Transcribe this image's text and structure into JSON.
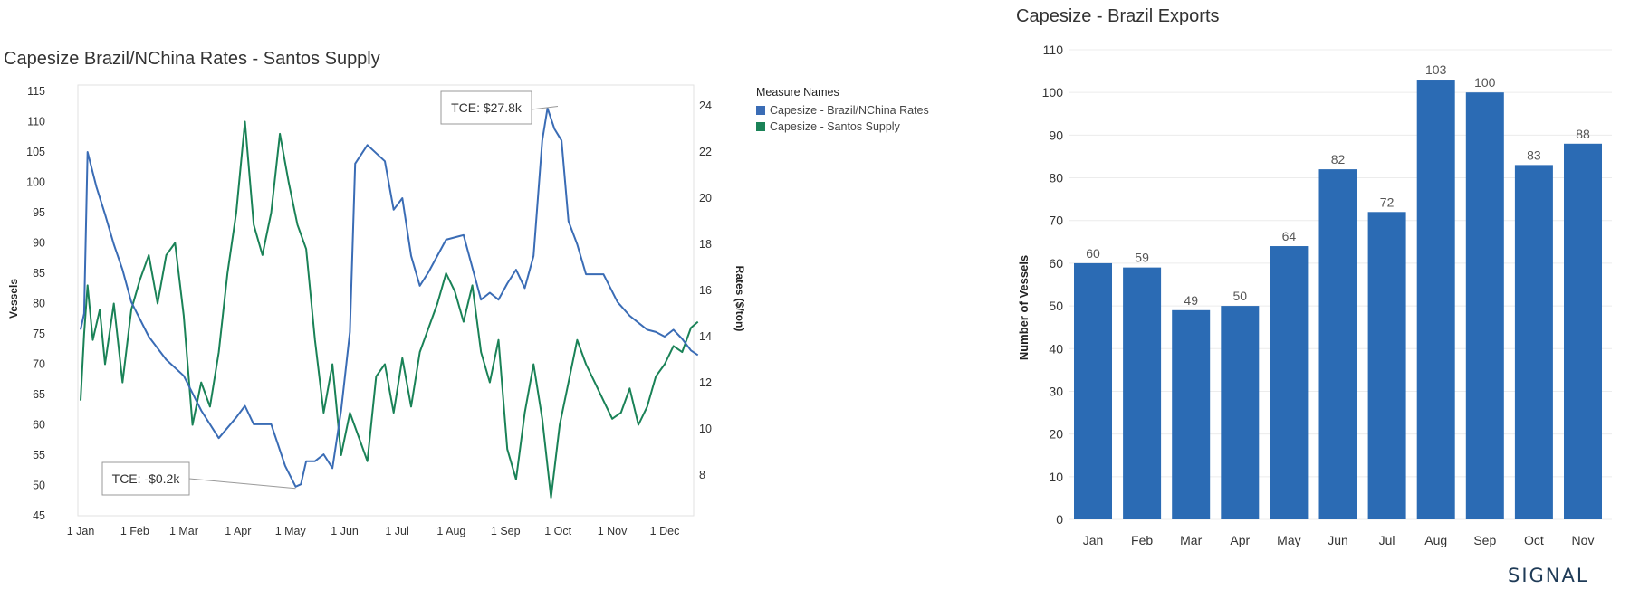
{
  "colors": {
    "rates": "#3a6cb5",
    "supply": "#1a8257",
    "bar": "#2b6bb4",
    "grid": "#ececec"
  },
  "chart_data": [
    {
      "type": "line",
      "title": "Capesize Brazil/NChina Rates - Santos Supply",
      "left_axis_label": "Vessels",
      "right_axis_label": "Rates ($/ton)",
      "left_ylim": [
        45,
        115
      ],
      "left_ticks": [
        45,
        50,
        55,
        60,
        65,
        70,
        75,
        80,
        85,
        90,
        95,
        100,
        105,
        110,
        115
      ],
      "right_ylim": [
        6.6,
        25.0
      ],
      "right_ticks": [
        8,
        10,
        12,
        14,
        16,
        18,
        20,
        22,
        24
      ],
      "x_ticks": [
        "1 Jan",
        "1 Feb",
        "1 Mar",
        "1 Apr",
        "1 May",
        "1 Jun",
        "1 Jul",
        "1 Aug",
        "1 Sep",
        "1 Oct",
        "1 Nov",
        "1 Dec"
      ],
      "legend_title": "Measure Names",
      "series": [
        {
          "name": "Capesize - Brazil/NChina Rates",
          "axis": "right",
          "x_day": [
            1,
            3,
            5,
            10,
            15,
            20,
            25,
            30,
            40,
            50,
            60,
            70,
            80,
            90,
            95,
            100,
            110,
            118,
            124,
            127,
            130,
            135,
            140,
            145,
            150,
            155,
            158,
            165,
            175,
            180,
            185,
            190,
            195,
            200,
            210,
            220,
            230,
            235,
            240,
            245,
            250,
            255,
            260,
            265,
            268,
            272,
            276,
            280,
            285,
            290,
            300,
            308,
            315,
            320,
            325,
            330,
            335,
            340,
            345,
            350,
            354
          ],
          "values": [
            14.3,
            15.0,
            22.0,
            20.5,
            19.3,
            18.0,
            16.9,
            15.5,
            14.0,
            13.0,
            12.3,
            10.8,
            9.6,
            10.5,
            11.0,
            10.2,
            10.2,
            8.4,
            7.5,
            7.6,
            8.6,
            8.6,
            8.9,
            8.3,
            10.8,
            14.2,
            21.5,
            22.3,
            21.6,
            19.5,
            20.0,
            17.5,
            16.2,
            16.8,
            18.2,
            18.4,
            15.6,
            15.9,
            15.6,
            16.3,
            16.9,
            16.1,
            17.5,
            22.5,
            23.9,
            23.0,
            22.5,
            19.0,
            18.0,
            16.7,
            16.7,
            15.5,
            14.9,
            14.6,
            14.3,
            14.2,
            14.0,
            14.3,
            13.9,
            13.4,
            13.2
          ]
        },
        {
          "name": "Capesize - Santos Supply",
          "axis": "left",
          "x_day": [
            1,
            3,
            5,
            8,
            12,
            15,
            20,
            25,
            30,
            35,
            40,
            45,
            50,
            55,
            60,
            65,
            70,
            75,
            80,
            85,
            90,
            95,
            100,
            105,
            110,
            115,
            120,
            125,
            130,
            135,
            140,
            145,
            150,
            155,
            160,
            165,
            170,
            175,
            180,
            185,
            190,
            195,
            200,
            205,
            210,
            215,
            220,
            225,
            230,
            235,
            240,
            245,
            250,
            255,
            260,
            265,
            270,
            275,
            280,
            285,
            290,
            295,
            300,
            305,
            310,
            315,
            320,
            325,
            330,
            335,
            340,
            345,
            350,
            354
          ],
          "values": [
            64,
            75,
            83,
            74,
            79,
            70,
            80,
            67,
            79,
            84,
            88,
            80,
            88,
            90,
            78,
            60,
            67,
            63,
            72,
            85,
            95,
            110,
            93,
            88,
            95,
            108,
            100,
            93,
            89,
            74,
            62,
            70,
            55,
            62,
            58,
            54,
            68,
            70,
            62,
            71,
            63,
            72,
            76,
            80,
            85,
            82,
            77,
            83,
            72,
            67,
            74,
            56,
            51,
            62,
            70,
            61,
            48,
            60,
            67,
            74,
            70,
            67,
            64,
            61,
            62,
            66,
            60,
            63,
            68,
            70,
            73,
            72,
            76,
            77
          ]
        }
      ],
      "annotations": [
        {
          "text": "TCE: $27.8k",
          "x_day": 277,
          "value": 23.9
        },
        {
          "text": "TCE: -$0.2k",
          "x_day": 124,
          "value": 7.5
        }
      ]
    },
    {
      "type": "bar",
      "title": "Capesize - Brazil Exports",
      "ylabel": "Number of Vessels",
      "ylim": [
        0,
        110
      ],
      "y_ticks": [
        0,
        10,
        20,
        30,
        40,
        50,
        60,
        70,
        80,
        90,
        100,
        110
      ],
      "categories": [
        "Jan",
        "Feb",
        "Mar",
        "Apr",
        "May",
        "Jun",
        "Jul",
        "Aug",
        "Sep",
        "Oct",
        "Nov"
      ],
      "values": [
        60,
        59,
        49,
        50,
        64,
        82,
        72,
        103,
        100,
        83,
        88
      ]
    }
  ],
  "logo_text": "SIGNAL"
}
